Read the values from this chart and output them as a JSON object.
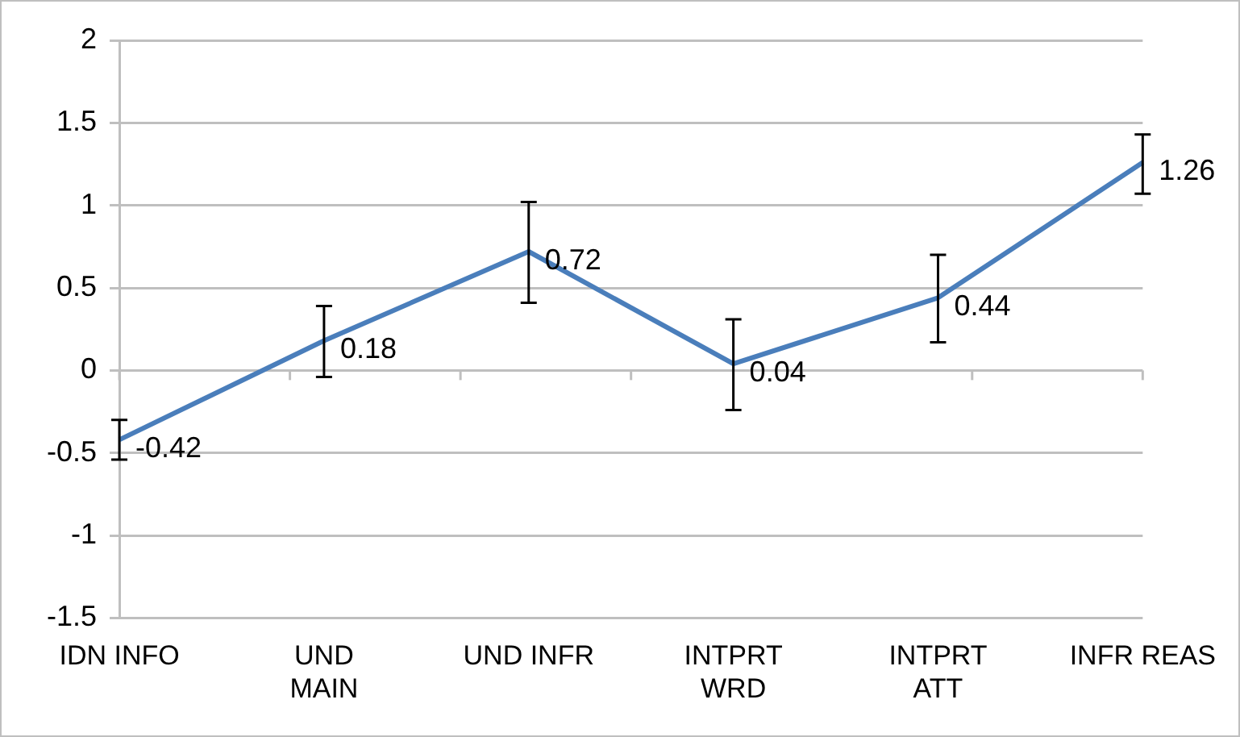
{
  "chart_data": {
    "type": "line",
    "categories": [
      "IDN INFO",
      "UND\nMAIN",
      "UND INFR",
      "INTPRT\nWRD",
      "INTPRT\nATT",
      "INFR REAS"
    ],
    "series": [
      {
        "color": "#4a7ebb",
        "values": [
          -0.42,
          0.18,
          0.72,
          0.04,
          0.44,
          1.26
        ],
        "errors": [
          [
            -0.54,
            -0.3
          ],
          [
            -0.04,
            0.39
          ],
          [
            0.41,
            1.02
          ],
          [
            -0.24,
            0.31
          ],
          [
            0.17,
            0.7
          ],
          [
            1.07,
            1.43
          ]
        ]
      }
    ],
    "ylim": [
      -1.5,
      2
    ],
    "yticks": [
      -1.5,
      -1,
      -0.5,
      0,
      0.5,
      1,
      1.5,
      2
    ],
    "grid": "y",
    "legend": false,
    "marker": "none",
    "line_style": "solid",
    "data_labels": true
  }
}
